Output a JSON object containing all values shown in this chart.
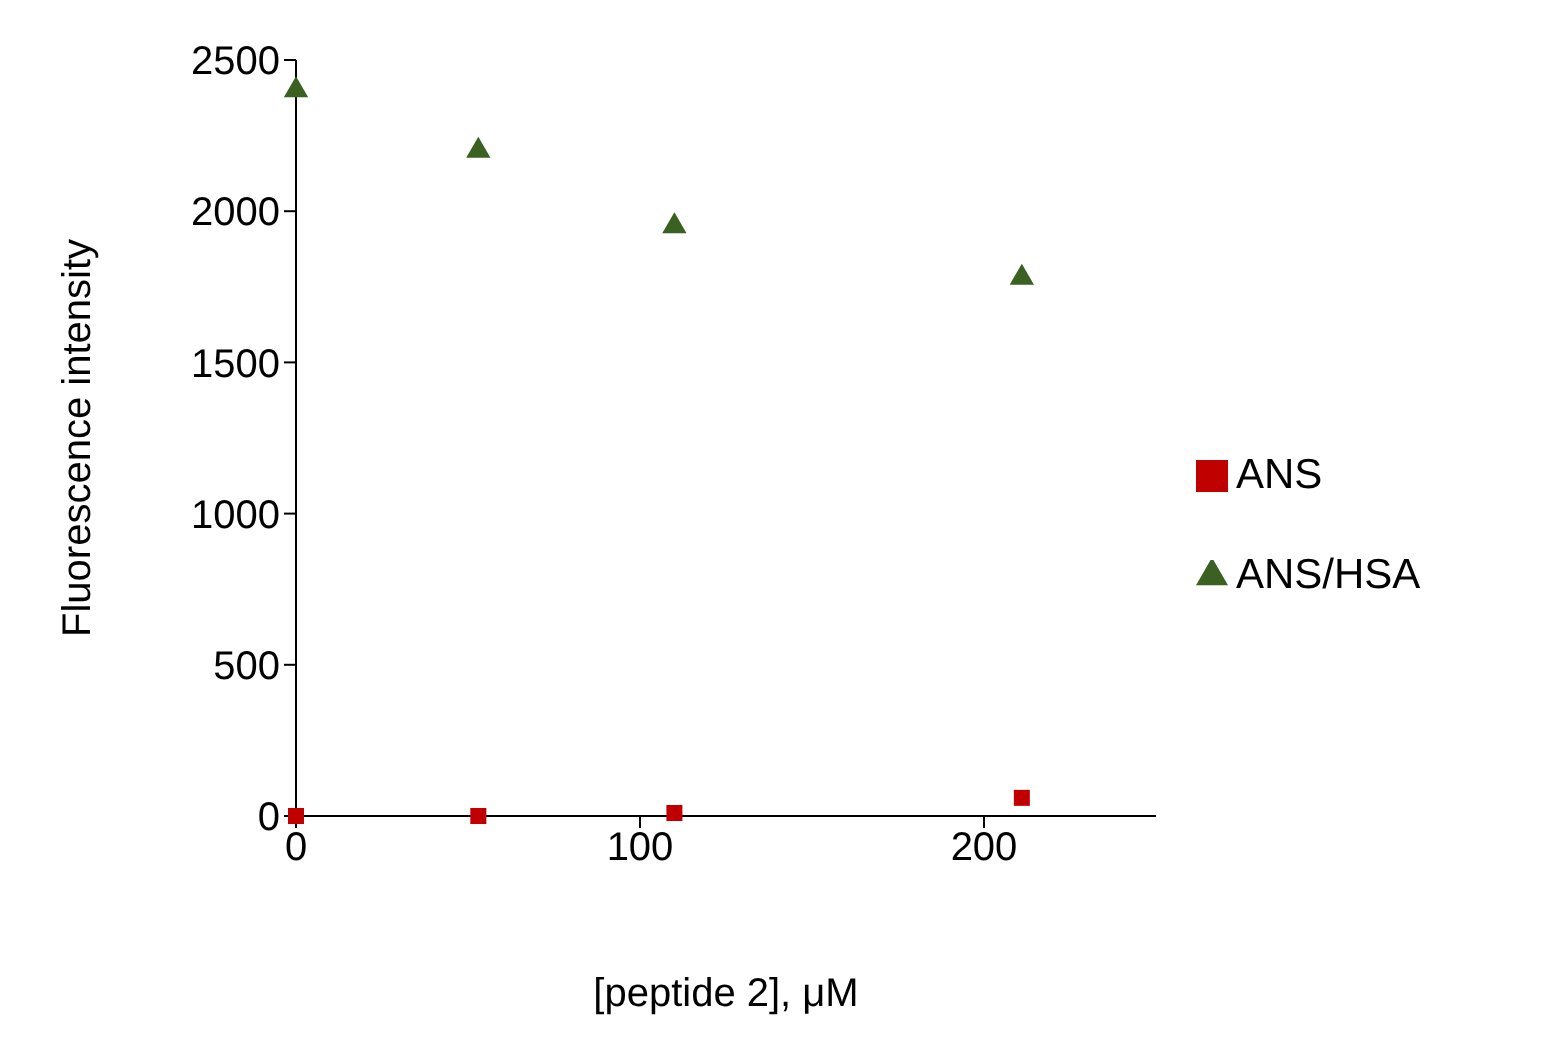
{
  "chart_data": {
    "type": "scatter",
    "xlabel": "[peptide 2], μM",
    "ylabel": "Fluorescence intensity",
    "x": [
      0,
      53,
      110,
      211
    ],
    "series": [
      {
        "name": "ANS",
        "color": "#c00000",
        "marker": "square",
        "values": [
          0,
          0,
          10,
          60
        ]
      },
      {
        "name": "ANS/HSA",
        "color": "#3a6121",
        "marker": "triangle",
        "values": [
          2400,
          2200,
          1950,
          1780
        ]
      }
    ],
    "xlim": [
      0,
      250
    ],
    "xticks": [
      0,
      100,
      200
    ],
    "ylim": [
      0,
      2500
    ],
    "yticks": [
      0,
      500,
      1000,
      1500,
      2000,
      2500
    ],
    "grid": false,
    "legend": "right"
  }
}
